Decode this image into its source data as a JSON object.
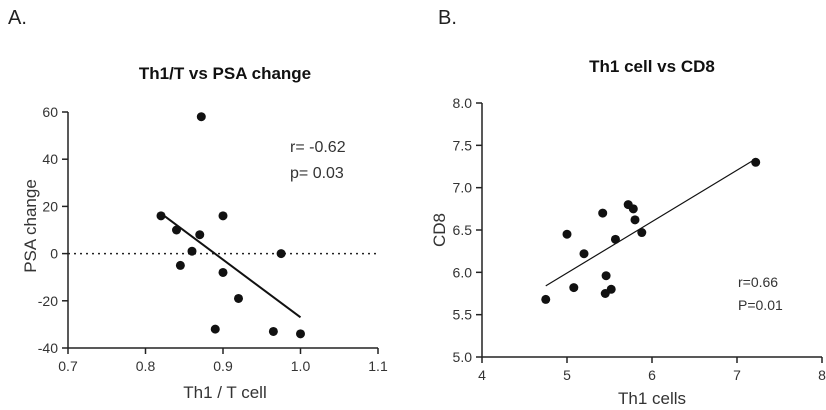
{
  "chart_data": [
    {
      "type": "scatter",
      "panel": "A.",
      "title": "Th1/T vs PSA  change",
      "xlabel": "Th1 / T cell",
      "ylabel": "PSA change",
      "xlim": [
        0.7,
        1.1
      ],
      "ylim": [
        -40,
        60
      ],
      "xticks": [
        "0.7",
        "0.8",
        "0.9",
        "1.0",
        "1.1"
      ],
      "yticks": [
        "-40",
        "-20",
        "0",
        "20",
        "40",
        "60"
      ],
      "annotations": [
        "r= -0.62",
        "p= 0.03"
      ],
      "reference_line": {
        "y": 0,
        "style": "dotted"
      },
      "points": [
        {
          "x": 0.82,
          "y": 16
        },
        {
          "x": 0.84,
          "y": 10
        },
        {
          "x": 0.845,
          "y": -5
        },
        {
          "x": 0.86,
          "y": 1
        },
        {
          "x": 0.87,
          "y": 8
        },
        {
          "x": 0.872,
          "y": 58
        },
        {
          "x": 0.89,
          "y": -32
        },
        {
          "x": 0.9,
          "y": 16
        },
        {
          "x": 0.9,
          "y": -8
        },
        {
          "x": 0.92,
          "y": -19
        },
        {
          "x": 0.965,
          "y": -33
        },
        {
          "x": 0.975,
          "y": 0
        },
        {
          "x": 1.0,
          "y": -34
        }
      ],
      "fit_line": [
        {
          "x": 0.82,
          "y": 17
        },
        {
          "x": 1.0,
          "y": -27
        }
      ],
      "grid": false,
      "colors": {
        "points": "#111111",
        "line": "#111111"
      }
    },
    {
      "type": "scatter",
      "panel": "B.",
      "title": "Th1 cell vs CD8",
      "xlabel": "Th1 cells",
      "ylabel": "CD8",
      "xlim": [
        4,
        8
      ],
      "ylim": [
        5.0,
        8.0
      ],
      "xticks": [
        "4",
        "5",
        "6",
        "7",
        "8"
      ],
      "yticks": [
        "5.0",
        "5.5",
        "6.0",
        "6.5",
        "7.0",
        "7.5",
        "8.0"
      ],
      "annotations": [
        "r=0.66",
        "P=0.01"
      ],
      "points": [
        {
          "x": 4.75,
          "y": 5.68
        },
        {
          "x": 5.0,
          "y": 6.45
        },
        {
          "x": 5.08,
          "y": 5.82
        },
        {
          "x": 5.2,
          "y": 6.22
        },
        {
          "x": 5.42,
          "y": 6.7
        },
        {
          "x": 5.45,
          "y": 5.75
        },
        {
          "x": 5.46,
          "y": 5.96
        },
        {
          "x": 5.52,
          "y": 5.8
        },
        {
          "x": 5.57,
          "y": 6.39
        },
        {
          "x": 5.72,
          "y": 6.8
        },
        {
          "x": 5.78,
          "y": 6.75
        },
        {
          "x": 5.8,
          "y": 6.62
        },
        {
          "x": 5.88,
          "y": 6.47
        },
        {
          "x": 7.22,
          "y": 7.3
        }
      ],
      "fit_line": [
        {
          "x": 4.75,
          "y": 5.84
        },
        {
          "x": 7.22,
          "y": 7.34
        }
      ],
      "grid": false,
      "colors": {
        "points": "#111111",
        "line": "#111111"
      }
    }
  ]
}
